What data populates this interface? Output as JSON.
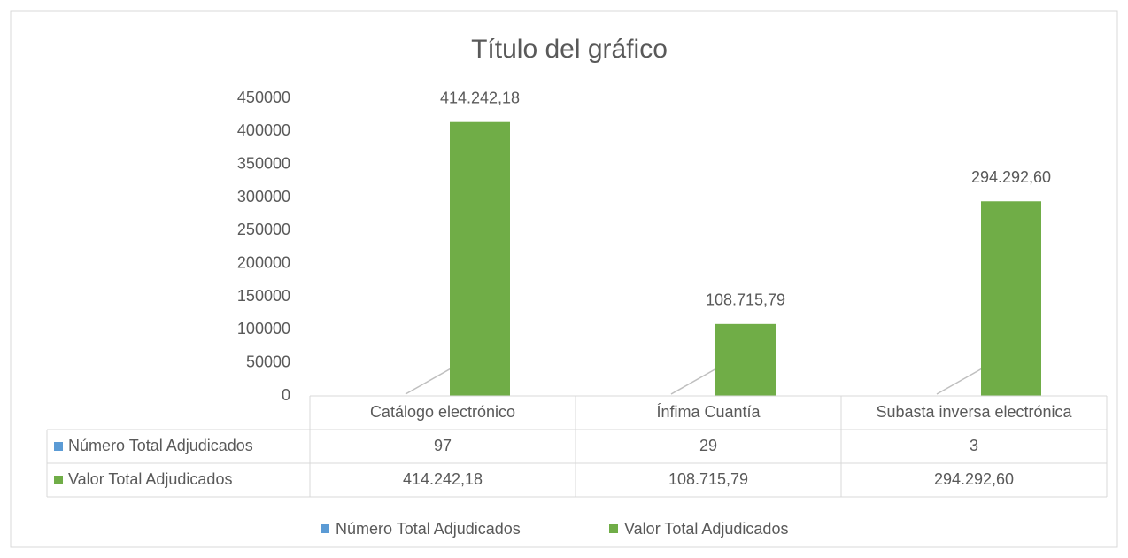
{
  "chart_data": {
    "type": "bar",
    "title": "Título del gráfico",
    "categories": [
      "Catálogo electrónico",
      "Ínfima Cuantía",
      "Subasta inversa electrónica"
    ],
    "series": [
      {
        "name": "Número Total Adjudicados",
        "color": "#5b9bd5",
        "values": [
          97,
          29,
          3
        ]
      },
      {
        "name": "Valor Total Adjudicados",
        "color": "#70ad47",
        "values": [
          414242.18,
          108715.79,
          294292.6
        ],
        "value_labels": [
          "414.242,18",
          "108.715,79",
          "294.292,60"
        ]
      }
    ],
    "ylim": [
      0,
      450000
    ],
    "yticks": [
      0,
      50000,
      100000,
      150000,
      200000,
      250000,
      300000,
      350000,
      400000,
      450000
    ],
    "legend": "bottom",
    "data_table": true
  }
}
